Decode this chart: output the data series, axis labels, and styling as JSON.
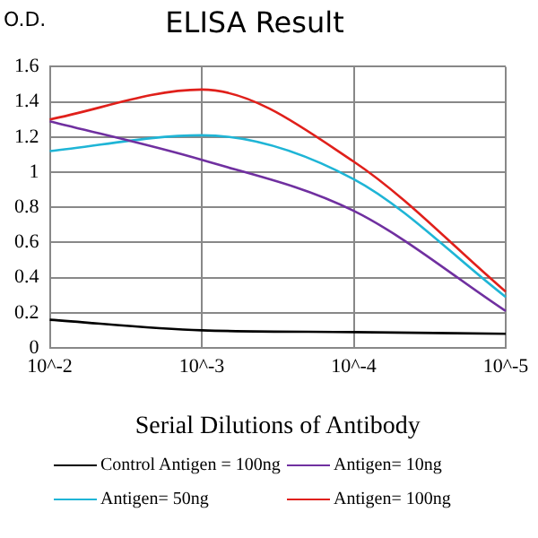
{
  "chart_data": {
    "type": "line",
    "title": "ELISA Result",
    "ylabel": "O.D.",
    "xlabel": "Serial Dilutions of Antibody",
    "categories": [
      "10^-2",
      "10^-3",
      "10^-4",
      "10^-5"
    ],
    "series": [
      {
        "name": "Control Antigen = 100ng",
        "color": "#000000",
        "values": [
          0.16,
          0.1,
          0.09,
          0.08
        ]
      },
      {
        "name": "Antigen= 10ng",
        "color": "#7030a0",
        "values": [
          1.29,
          1.07,
          0.78,
          0.21
        ]
      },
      {
        "name": "Antigen= 50ng",
        "color": "#1fb5d6",
        "values": [
          1.12,
          1.21,
          0.96,
          0.29
        ]
      },
      {
        "name": "Antigen= 100ng",
        "color": "#e0201b",
        "values": [
          1.3,
          1.47,
          1.06,
          0.32
        ]
      }
    ],
    "ylim": [
      0,
      1.6
    ],
    "yticks": [
      0,
      0.2,
      0.4,
      0.6,
      0.8,
      1,
      1.2,
      1.4,
      1.6
    ],
    "grid": true,
    "legend": "bottom",
    "marker": "none",
    "line_style": "solid"
  }
}
